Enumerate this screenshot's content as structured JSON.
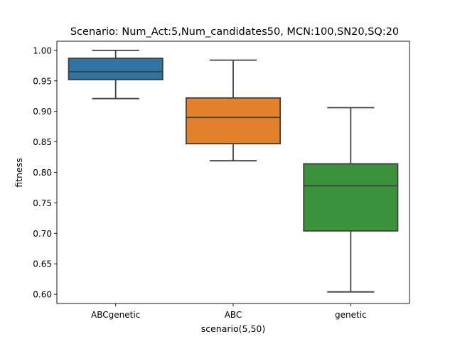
{
  "chart_data": {
    "type": "box",
    "title": "Scenario: Num_Act:5,Num_candidates50, MCN:100,SN20,SQ:20",
    "xlabel": "scenario(5,50)",
    "ylabel": "fitness",
    "ylim": [
      0.585,
      1.015
    ],
    "yticks": [
      0.6,
      0.65,
      0.7,
      0.75,
      0.8,
      0.85,
      0.9,
      0.95,
      1.0
    ],
    "ytick_labels": [
      "0.60",
      "0.65",
      "0.70",
      "0.75",
      "0.80",
      "0.85",
      "0.90",
      "0.95",
      "1.00"
    ],
    "grid": false,
    "categories": [
      "ABCgenetic",
      "ABC",
      "genetic"
    ],
    "boxes": [
      {
        "category": "ABCgenetic",
        "whisker_low": 0.921,
        "q1": 0.952,
        "median": 0.965,
        "q3": 0.987,
        "whisker_high": 1.0,
        "color": "#3274a1"
      },
      {
        "category": "ABC",
        "whisker_low": 0.819,
        "q1": 0.847,
        "median": 0.89,
        "q3": 0.922,
        "whisker_high": 0.984,
        "color": "#e1812c"
      },
      {
        "category": "genetic",
        "whisker_low": 0.604,
        "q1": 0.704,
        "median": 0.778,
        "q3": 0.814,
        "whisker_high": 0.906,
        "color": "#3a923a"
      }
    ]
  }
}
